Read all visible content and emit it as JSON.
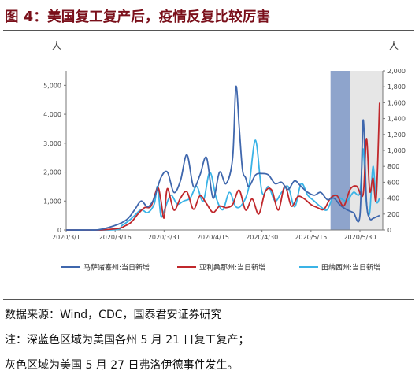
{
  "title": "图 4：美国复工复产后，疫情反复比较厉害",
  "chart_data": {
    "type": "line",
    "unit_left": "人",
    "unit_right": "人",
    "y_left": {
      "min": 0,
      "max": 5500,
      "ticks": [
        0,
        1000,
        2000,
        3000,
        4000,
        5000
      ],
      "tick_labels": [
        "0",
        "1,000",
        "2,000",
        "3,000",
        "4,000",
        "5,000"
      ]
    },
    "y_right": {
      "min": 0,
      "max": 2000,
      "ticks": [
        0,
        200,
        400,
        600,
        800,
        1000,
        1200,
        1400,
        1600,
        1800,
        2000
      ],
      "tick_labels": [
        "0",
        "200",
        "400",
        "600",
        "800",
        "1,000",
        "1,200",
        "1,400",
        "1,600",
        "1,800",
        "2,000"
      ]
    },
    "x_labels": [
      "2020/3/1",
      "2020/3/16",
      "2020/3/31",
      "2020/4/15",
      "2020/4/30",
      "2020/5/15",
      "2020/5/30"
    ],
    "x_tick_positions": [
      0,
      15,
      30,
      45,
      60,
      75,
      90
    ],
    "shaded_regions": [
      {
        "start": 81,
        "end": 87,
        "color": "#8ea4cc"
      },
      {
        "start": 87,
        "end": 97,
        "color": "#e6e6e6"
      }
    ],
    "series": [
      {
        "name": "马萨诸塞州:当日新增",
        "axis": "left",
        "color": "#3f67ad",
        "x": [
          0,
          6,
          10,
          14,
          17,
          19,
          21,
          23,
          25,
          27,
          29,
          31,
          33,
          35,
          37,
          39,
          41,
          43,
          45,
          47,
          49,
          51,
          52,
          53,
          54,
          55,
          56,
          58,
          60,
          62,
          64,
          66,
          68,
          70,
          72,
          74,
          76,
          78,
          80,
          82,
          84,
          86,
          88,
          90,
          91,
          92,
          93,
          94,
          95,
          96
        ],
        "y": [
          0,
          0,
          10,
          120,
          250,
          400,
          700,
          1000,
          800,
          1100,
          1800,
          2000,
          1300,
          1700,
          2600,
          1500,
          1900,
          2500,
          1100,
          2000,
          1600,
          2500,
          4950,
          3600,
          2100,
          1800,
          1500,
          1900,
          1950,
          1900,
          1600,
          1650,
          1400,
          1700,
          1500,
          1300,
          1200,
          1300,
          1050,
          1100,
          850,
          700,
          600,
          500,
          3800,
          1000,
          400,
          400,
          450,
          500
        ]
      },
      {
        "name": "亚利桑那州:当日新增",
        "axis": "right",
        "color": "#c0282c",
        "x": [
          0,
          10,
          16,
          18,
          20,
          22,
          24,
          26,
          28,
          29,
          30,
          31,
          33,
          35,
          37,
          39,
          41,
          43,
          45,
          47,
          49,
          51,
          53,
          55,
          57,
          59,
          61,
          63,
          65,
          67,
          69,
          71,
          73,
          75,
          77,
          79,
          81,
          83,
          85,
          87,
          89,
          91,
          92,
          93,
          94,
          95,
          96
        ],
        "y": [
          0,
          0,
          20,
          50,
          100,
          200,
          280,
          300,
          530,
          380,
          150,
          520,
          250,
          400,
          480,
          260,
          430,
          330,
          220,
          300,
          280,
          320,
          500,
          250,
          390,
          200,
          480,
          500,
          250,
          550,
          300,
          420,
          390,
          320,
          280,
          260,
          400,
          430,
          300,
          510,
          550,
          450,
          1150,
          490,
          650,
          400,
          1600
        ]
      },
      {
        "name": "田纳西州:当日新增",
        "axis": "left",
        "color": "#3ab3e6",
        "x": [
          0,
          15,
          17,
          19,
          21,
          23,
          25,
          27,
          28,
          29,
          30,
          32,
          34,
          36,
          38,
          40,
          42,
          44,
          46,
          48,
          50,
          52,
          54,
          56,
          58,
          60,
          62,
          64,
          66,
          68,
          70,
          72,
          74,
          76,
          78,
          80,
          82,
          84,
          86,
          88,
          90,
          91,
          92,
          93,
          94,
          95,
          96
        ],
        "y": [
          0,
          10,
          150,
          300,
          500,
          700,
          600,
          900,
          1500,
          500,
          650,
          1200,
          900,
          1000,
          1100,
          1500,
          1000,
          2000,
          1100,
          700,
          1300,
          800,
          900,
          1500,
          3100,
          1300,
          1500,
          1000,
          1300,
          1500,
          800,
          1600,
          1200,
          1000,
          800,
          700,
          1200,
          1100,
          1000,
          1300,
          1300,
          2800,
          900,
          600,
          2200,
          1000,
          1100
        ]
      }
    ]
  },
  "notes": [
    "数据来源：Wind，CDC，国泰君安证券研究",
    "注：深蓝色区域为美国各州 5 月 21 日复工复产；",
    "灰色区域为美国 5 月 27 日弗洛伊德事件发生。"
  ]
}
